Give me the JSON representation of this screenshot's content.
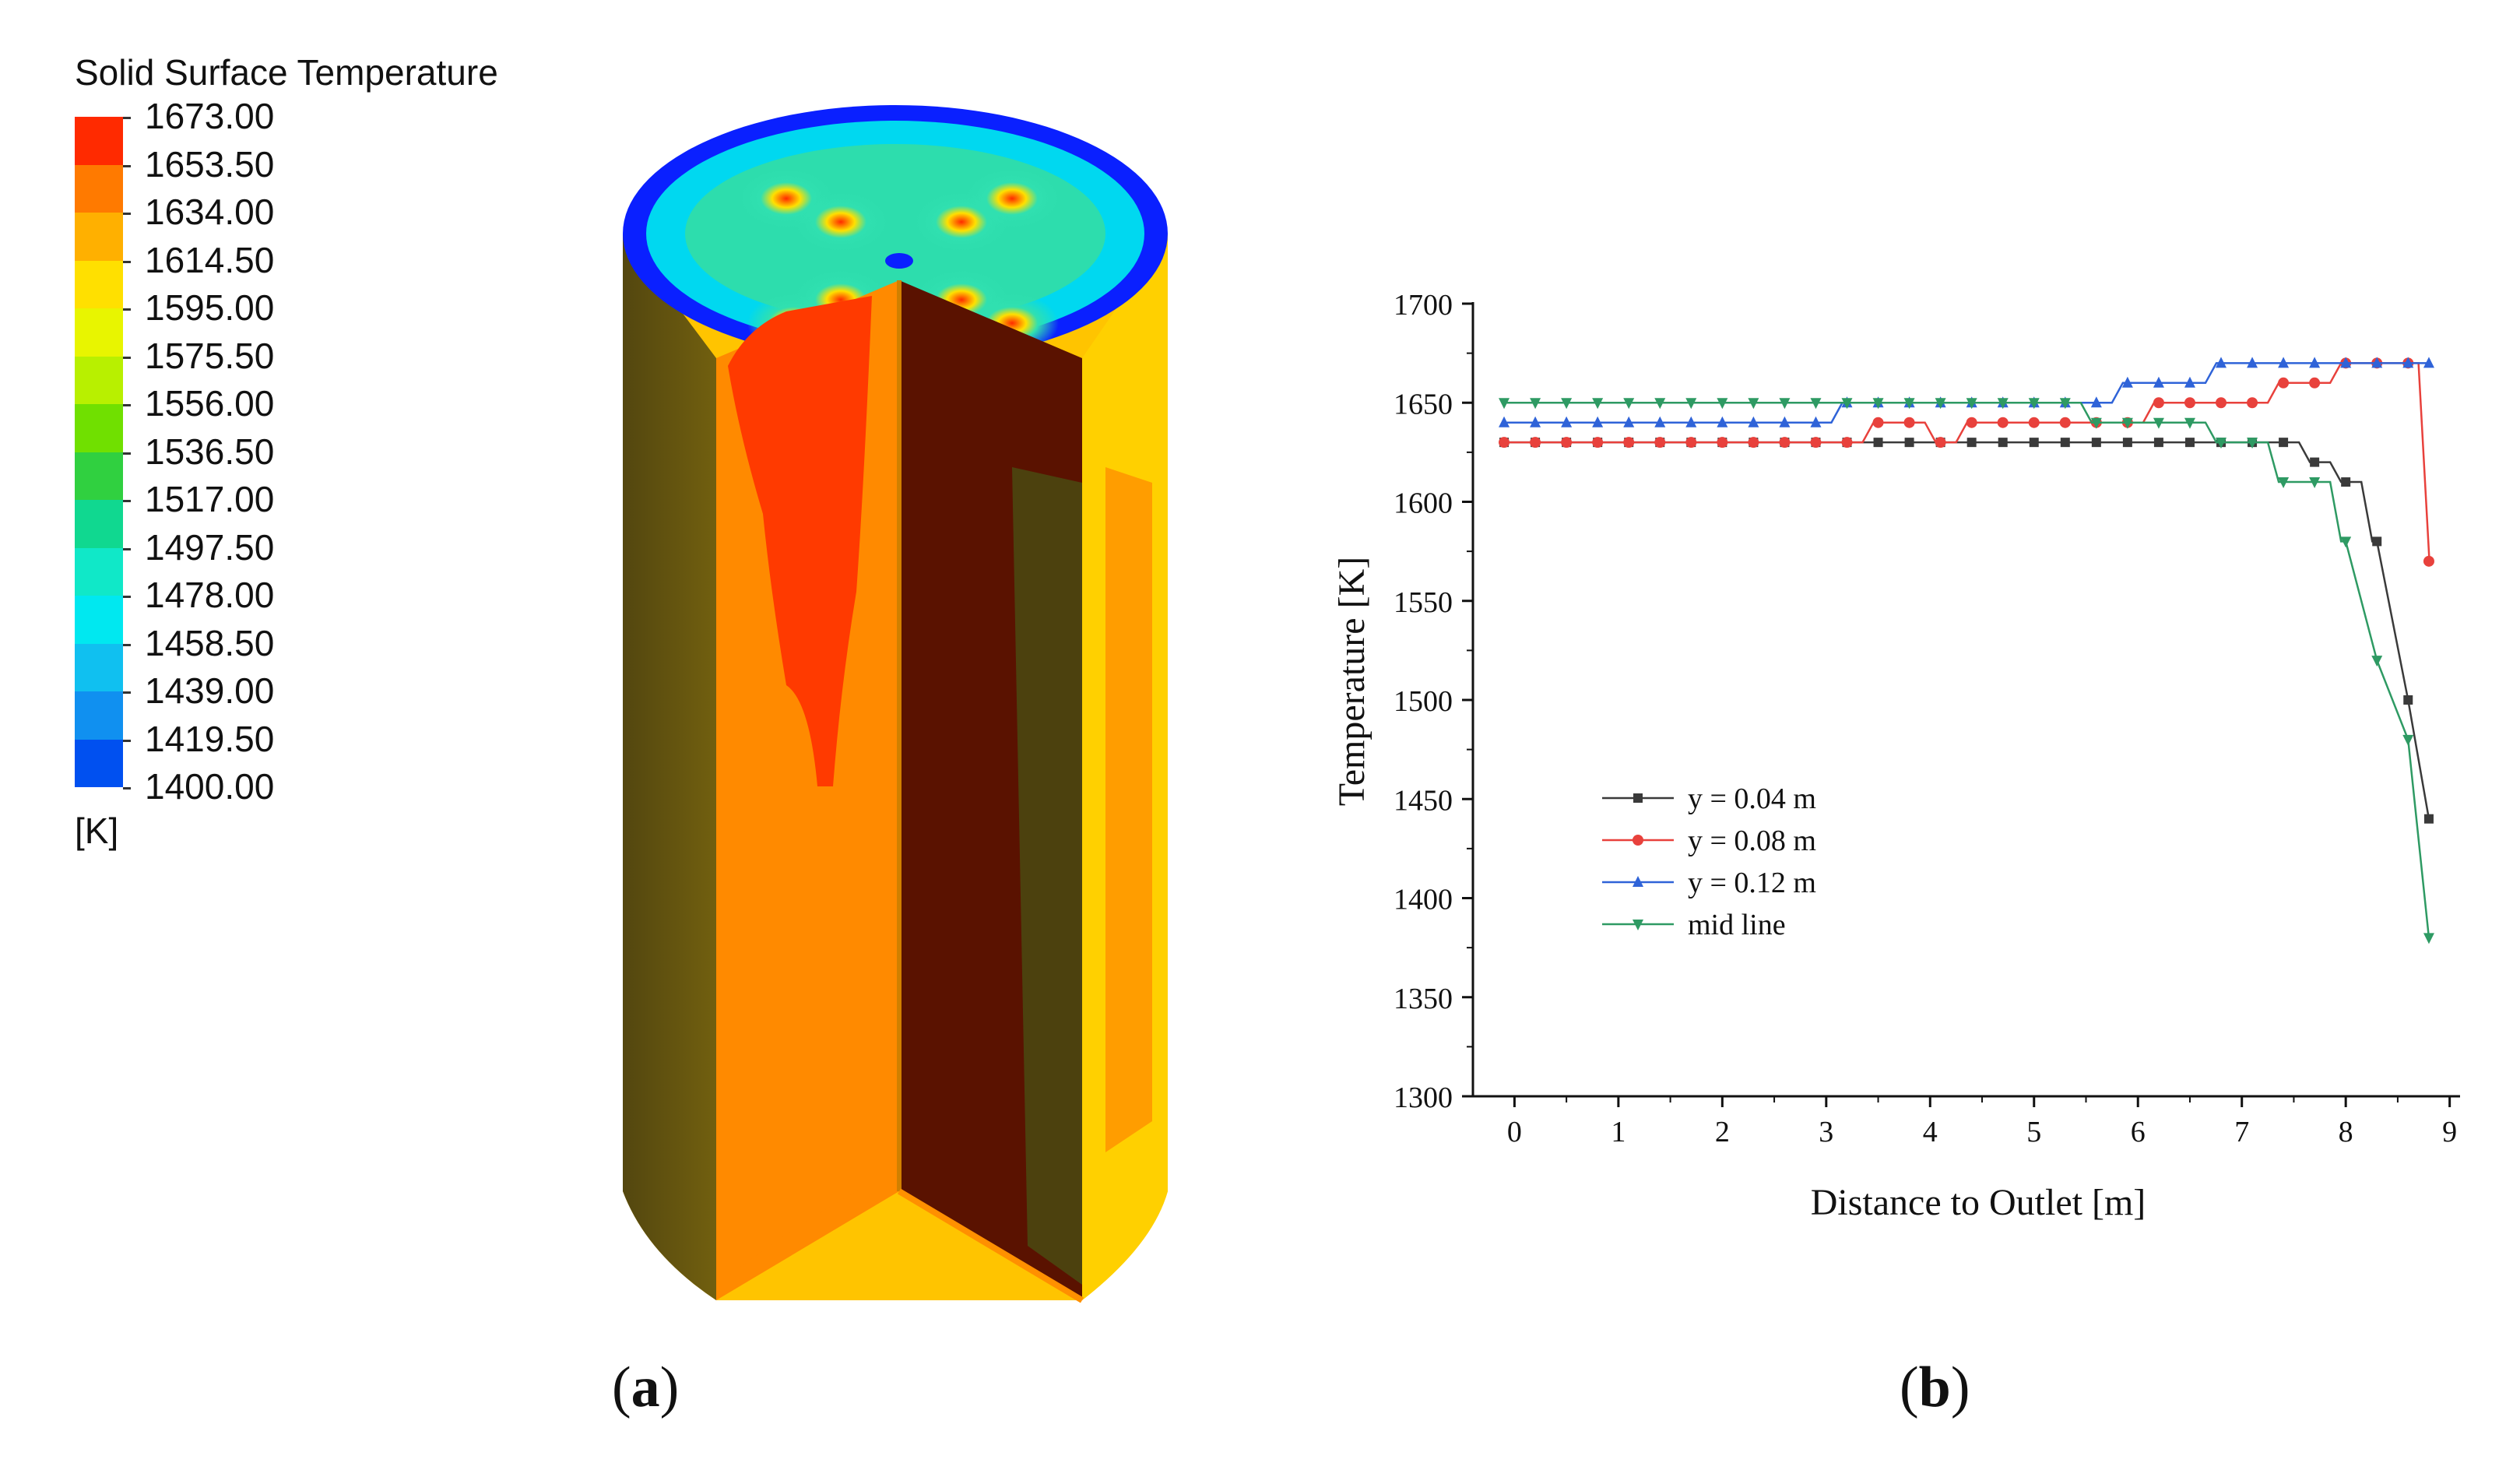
{
  "panel_a": {
    "legend_title": "Solid Surface Temperature",
    "legend_levels": [
      "1673.00",
      "1653.50",
      "1634.00",
      "1614.50",
      "1595.00",
      "1575.50",
      "1556.00",
      "1536.50",
      "1517.00",
      "1497.50",
      "1478.00",
      "1458.50",
      "1439.00",
      "1419.50",
      "1400.00"
    ],
    "legend_colors": [
      "#ff2a00",
      "#ff7a00",
      "#ffb000",
      "#ffe000",
      "#e8f500",
      "#b8f000",
      "#70e000",
      "#30d040",
      "#10d890",
      "#10e8c8",
      "#00e8f0",
      "#10c0f0",
      "#1090f0",
      "#0050f0"
    ],
    "legend_unit": "[K]",
    "caption_letter": "a"
  },
  "panel_b": {
    "caption_letter": "b"
  },
  "chart_data": {
    "type": "line",
    "xlabel": "Distance to Outlet [m]",
    "ylabel": "Temperature [K]",
    "xlim": [
      -0.4,
      9.1
    ],
    "ylim": [
      1300,
      1700
    ],
    "xticks": [
      0,
      1,
      2,
      3,
      4,
      5,
      6,
      7,
      8,
      9
    ],
    "yticks": [
      1300,
      1350,
      1400,
      1450,
      1500,
      1550,
      1600,
      1650,
      1700
    ],
    "legend_position": "lower-left",
    "grid": false,
    "series": [
      {
        "name": "y = 0.04 m",
        "color": "#3a3a3a",
        "marker": "square",
        "x": [
          -0.1,
          0.2,
          0.5,
          0.8,
          1.1,
          1.4,
          1.7,
          2.0,
          2.3,
          2.6,
          2.9,
          3.2,
          3.5,
          3.8,
          4.1,
          4.4,
          4.7,
          5.0,
          5.3,
          5.6,
          5.9,
          6.2,
          6.5,
          6.8,
          7.1,
          7.4,
          7.7,
          8.0,
          8.3,
          8.6,
          8.8
        ],
        "y": [
          1630,
          1630,
          1630,
          1630,
          1630,
          1630,
          1630,
          1630,
          1630,
          1630,
          1630,
          1630,
          1630,
          1630,
          1630,
          1630,
          1630,
          1630,
          1630,
          1630,
          1630,
          1630,
          1630,
          1630,
          1630,
          1630,
          1620,
          1610,
          1580,
          1500,
          1440
        ]
      },
      {
        "name": "y = 0.08 m",
        "color": "#e8413c",
        "marker": "circle",
        "x": [
          -0.1,
          0.2,
          0.5,
          0.8,
          1.1,
          1.4,
          1.7,
          2.0,
          2.3,
          2.6,
          2.9,
          3.2,
          3.5,
          3.8,
          4.1,
          4.4,
          4.7,
          5.0,
          5.3,
          5.6,
          5.9,
          6.2,
          6.5,
          6.8,
          7.1,
          7.4,
          7.7,
          8.0,
          8.3,
          8.6,
          8.8
        ],
        "y": [
          1630,
          1630,
          1630,
          1630,
          1630,
          1630,
          1630,
          1630,
          1630,
          1630,
          1630,
          1630,
          1640,
          1640,
          1630,
          1640,
          1640,
          1640,
          1640,
          1640,
          1640,
          1650,
          1650,
          1650,
          1650,
          1660,
          1660,
          1670,
          1670,
          1670,
          1570
        ]
      },
      {
        "name": "y = 0.12 m",
        "color": "#2f63d8",
        "marker": "triangle-up",
        "x": [
          -0.1,
          0.2,
          0.5,
          0.8,
          1.1,
          1.4,
          1.7,
          2.0,
          2.3,
          2.6,
          2.9,
          3.2,
          3.5,
          3.8,
          4.1,
          4.4,
          4.7,
          5.0,
          5.3,
          5.6,
          5.9,
          6.2,
          6.5,
          6.8,
          7.1,
          7.4,
          7.7,
          8.0,
          8.3,
          8.6,
          8.8
        ],
        "y": [
          1640,
          1640,
          1640,
          1640,
          1640,
          1640,
          1640,
          1640,
          1640,
          1640,
          1640,
          1650,
          1650,
          1650,
          1650,
          1650,
          1650,
          1650,
          1650,
          1650,
          1660,
          1660,
          1660,
          1670,
          1670,
          1670,
          1670,
          1670,
          1670,
          1670,
          1670
        ]
      },
      {
        "name": "mid line",
        "color": "#2e9a63",
        "marker": "triangle-down",
        "x": [
          -0.1,
          0.2,
          0.5,
          0.8,
          1.1,
          1.4,
          1.7,
          2.0,
          2.3,
          2.6,
          2.9,
          3.2,
          3.5,
          3.8,
          4.1,
          4.4,
          4.7,
          5.0,
          5.3,
          5.6,
          5.9,
          6.2,
          6.5,
          6.8,
          7.1,
          7.4,
          7.7,
          8.0,
          8.3,
          8.6,
          8.8
        ],
        "y": [
          1650,
          1650,
          1650,
          1650,
          1650,
          1650,
          1650,
          1650,
          1650,
          1650,
          1650,
          1650,
          1650,
          1650,
          1650,
          1650,
          1650,
          1650,
          1650,
          1640,
          1640,
          1640,
          1640,
          1630,
          1630,
          1610,
          1610,
          1580,
          1520,
          1480,
          1380
        ]
      }
    ]
  }
}
